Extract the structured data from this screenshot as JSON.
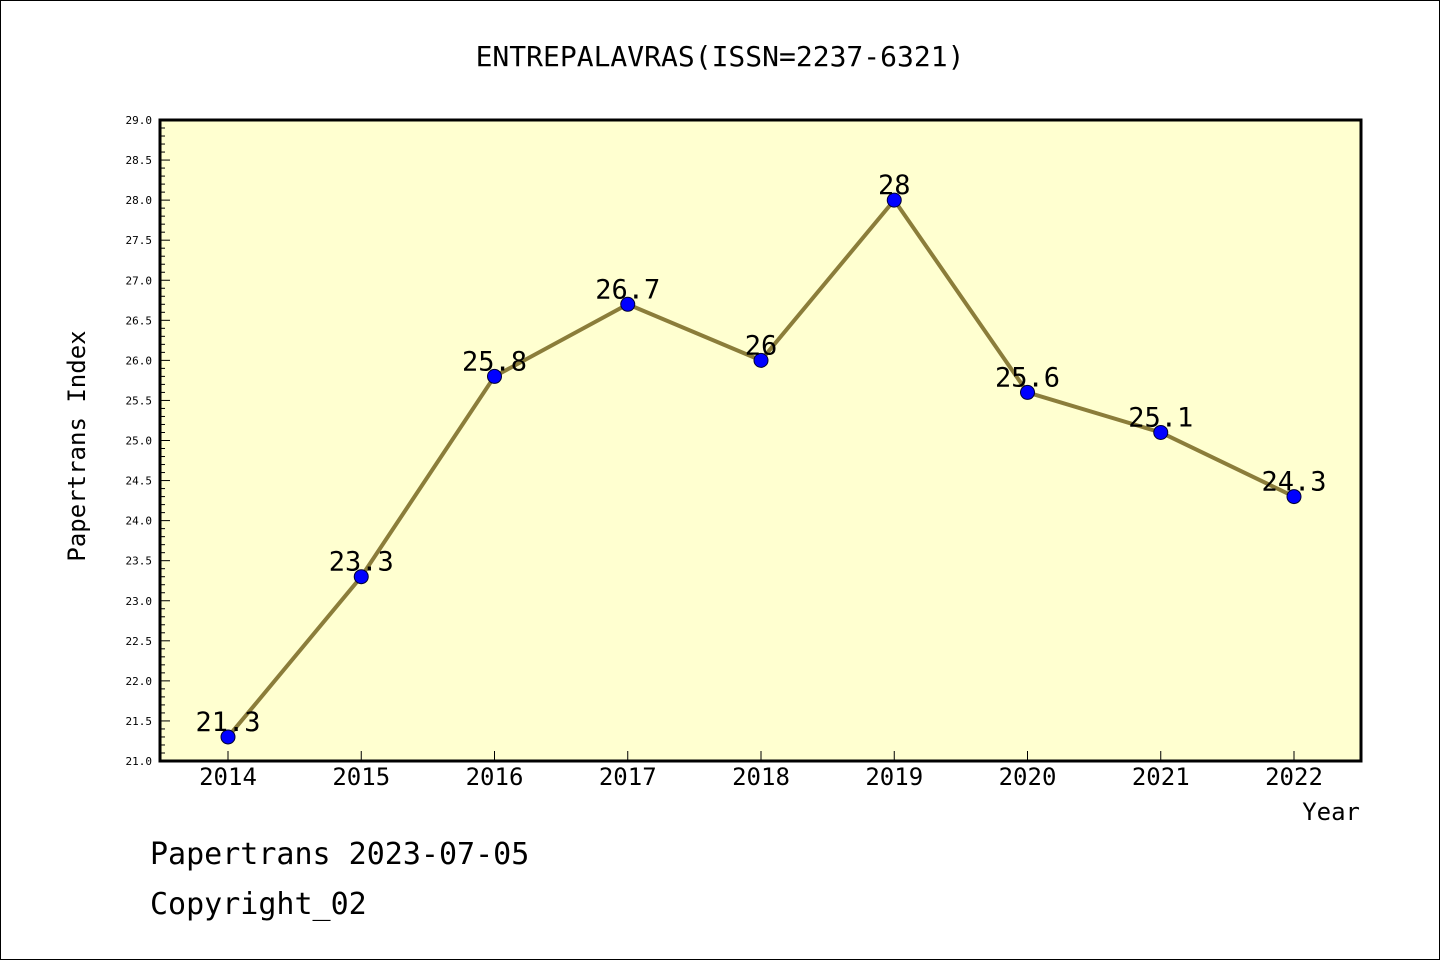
{
  "chart_data": {
    "type": "line",
    "title": "ENTREPALAVRAS(ISSN=2237-6321)",
    "xlabel": "Year",
    "ylabel": "Papertrans Index",
    "categories": [
      "2014",
      "2015",
      "2016",
      "2017",
      "2018",
      "2019",
      "2020",
      "2021",
      "2022"
    ],
    "series": [
      {
        "values": [
          21.3,
          23.3,
          25.8,
          26.7,
          26,
          28,
          25.6,
          25.1,
          24.3
        ]
      }
    ],
    "data_labels": [
      "21.3",
      "23.3",
      "25.8",
      "26.7",
      "26",
      "28",
      "25.6",
      "25.1",
      "24.3"
    ],
    "ylim": [
      21.0,
      29.0
    ],
    "yticks": [
      "21.0",
      "21.5",
      "22.0",
      "22.5",
      "23.0",
      "23.5",
      "24.0",
      "24.5",
      "25.0",
      "25.5",
      "26.0",
      "26.5",
      "27.0",
      "27.5",
      "28.0",
      "28.5",
      "29.0"
    ],
    "grid": false,
    "colors": {
      "plot_background": "#ffffd0",
      "line": "#8b7d3a",
      "marker": "#0000ff"
    }
  },
  "footer": {
    "line1": "Papertrans 2023-07-05",
    "line2": "Copyright_02"
  }
}
